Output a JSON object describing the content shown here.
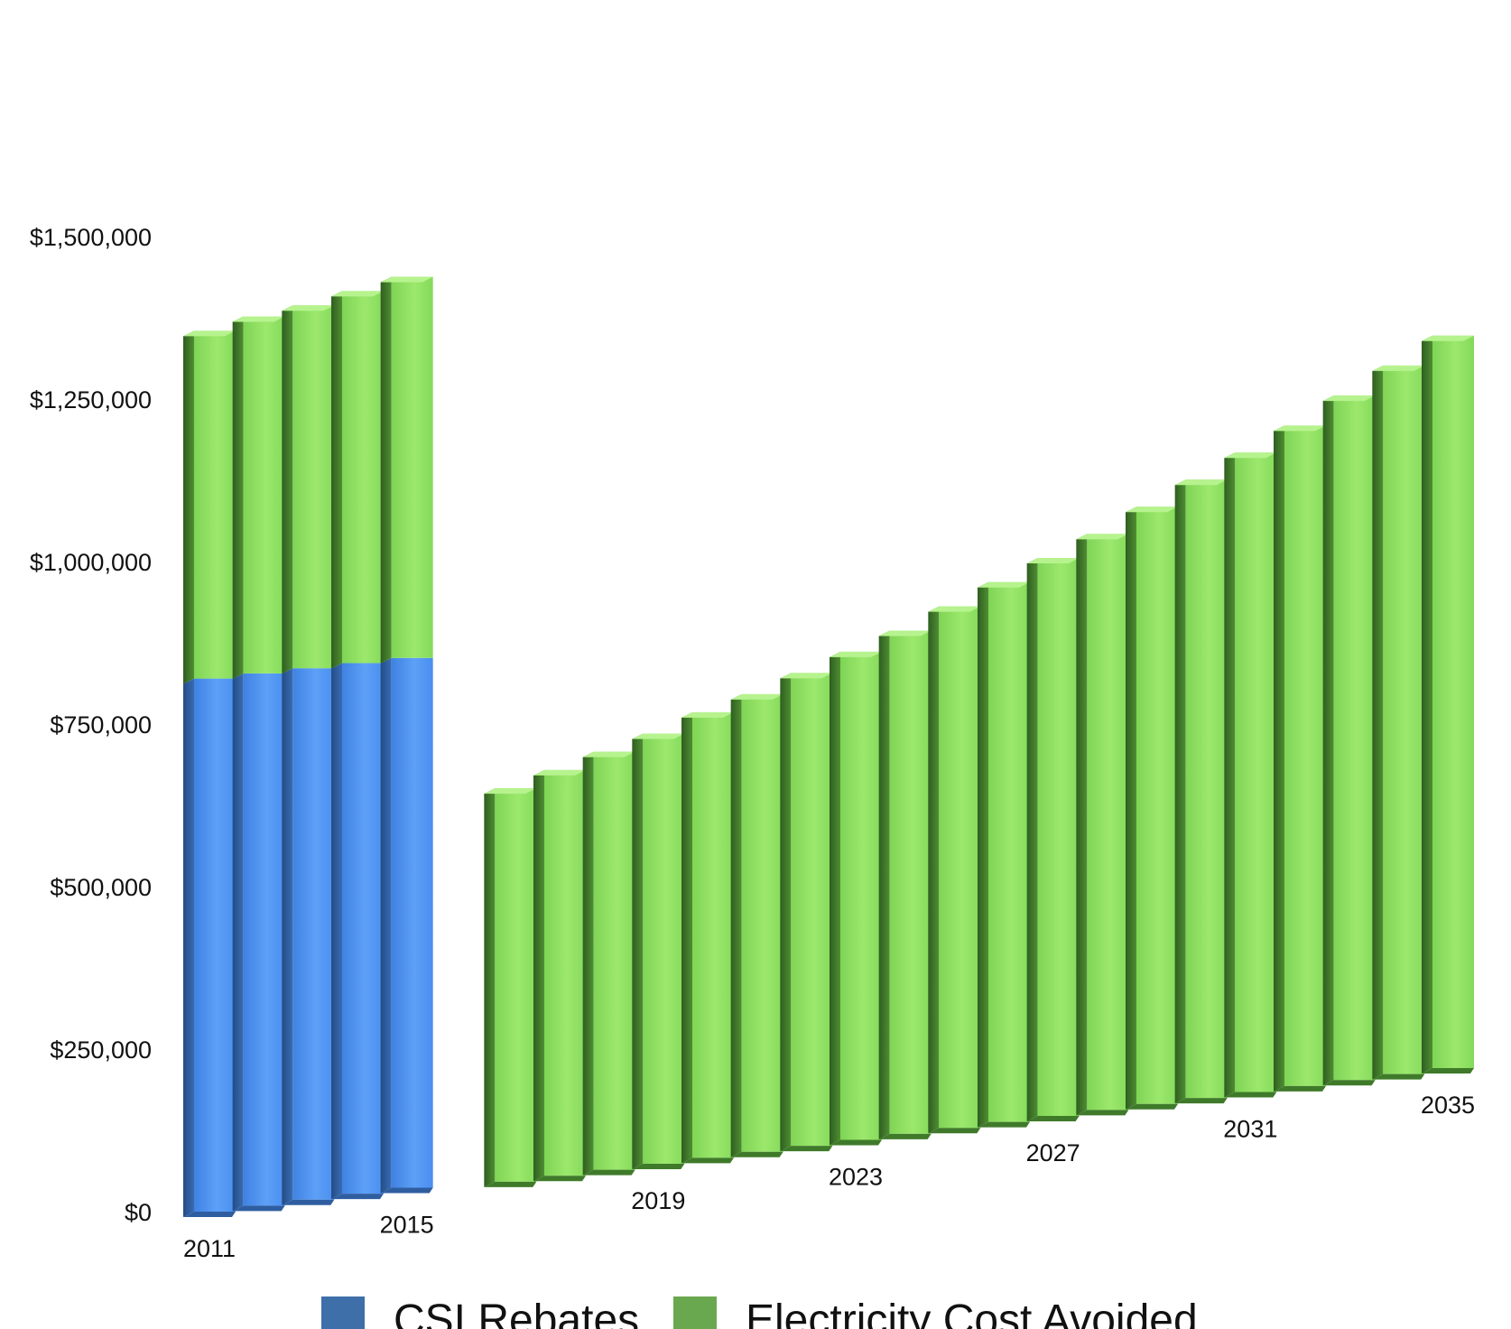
{
  "chart_data": {
    "type": "bar",
    "stacked": true,
    "style": "3d-perspective",
    "title": "",
    "xlabel": "",
    "ylabel": "",
    "ylim": [
      0,
      1500000
    ],
    "y_ticks": [
      0,
      250000,
      500000,
      750000,
      1000000,
      1250000,
      1500000
    ],
    "y_tick_labels": [
      "$0",
      "$250,000",
      "$500,000",
      "$750,000",
      "$1,000,000",
      "$1,250,000",
      "$1,500,000"
    ],
    "categories": [
      "2011",
      "2012",
      "2013",
      "2014",
      "2015",
      "2016",
      "2017",
      "2018",
      "2019",
      "2020",
      "2021",
      "2022",
      "2023",
      "2024",
      "2025",
      "2026",
      "2027",
      "2028",
      "2029",
      "2030",
      "2031",
      "2032",
      "2033",
      "2034",
      "2035"
    ],
    "x_tick_labels_shown": [
      "2011",
      "2015",
      "2019",
      "2023",
      "2027",
      "2031",
      "2035"
    ],
    "series": [
      {
        "name": "CSI Rebates",
        "color": "#4a8ef0",
        "legend_color": "#3e6fa8",
        "values": [
          820000,
          820000,
          820000,
          820000,
          820000,
          0,
          0,
          0,
          0,
          0,
          0,
          0,
          0,
          0,
          0,
          0,
          0,
          0,
          0,
          0,
          0,
          0,
          0,
          0,
          0
        ]
      },
      {
        "name": "Electricity Cost Avoided",
        "color": "#8fe060",
        "legend_color": "#6aa84f",
        "values": [
          535000,
          550000,
          560000,
          575000,
          590000,
          610000,
          630000,
          650000,
          670000,
          695000,
          715000,
          740000,
          765000,
          790000,
          820000,
          850000,
          880000,
          910000,
          945000,
          980000,
          1015000,
          1050000,
          1090000,
          1130000,
          1170000
        ]
      }
    ],
    "legend_position": "bottom",
    "grid": false
  }
}
